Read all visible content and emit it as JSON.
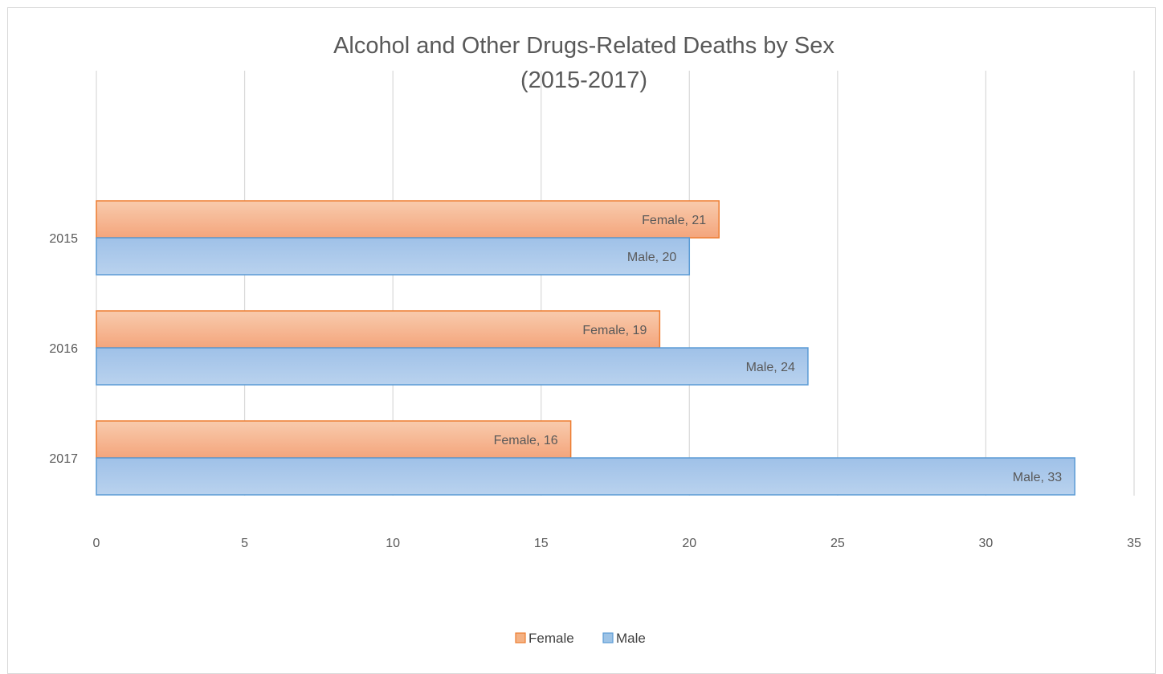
{
  "chart_data": {
    "type": "bar",
    "orientation": "horizontal",
    "title_line1": "Alcohol and Other Drugs-Related Deaths by Sex",
    "title_line2": "(2015-2017)",
    "categories": [
      "2015",
      "2016",
      "2017"
    ],
    "series": [
      {
        "name": "Female",
        "values": [
          21,
          19,
          16
        ],
        "color": "#f4b183",
        "stroke": "#ed7d31",
        "data_labels": [
          "Female, 21",
          "Female, 19",
          "Female, 16"
        ]
      },
      {
        "name": "Male",
        "values": [
          20,
          24,
          33
        ],
        "color": "#9dc3e6",
        "stroke": "#5b9bd5",
        "data_labels": [
          "Male, 20",
          "Male, 24",
          "Male, 33"
        ]
      }
    ],
    "xlim": [
      0,
      35
    ],
    "x_ticks": [
      "0",
      "5",
      "10",
      "15",
      "20",
      "25",
      "30",
      "35"
    ],
    "grid": true,
    "legend_position": "bottom"
  }
}
